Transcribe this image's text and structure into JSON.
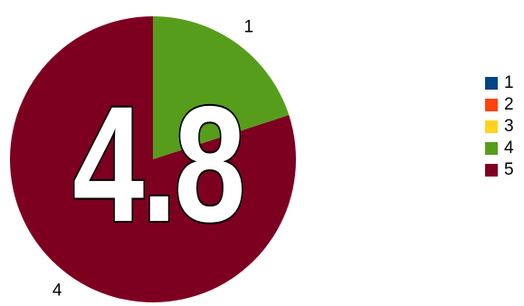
{
  "chart_data": {
    "type": "pie",
    "categories": [
      "1",
      "2",
      "3",
      "4",
      "5"
    ],
    "values": [
      0,
      0,
      0,
      1,
      4
    ],
    "slice_labels": [
      "",
      "",
      "",
      "1",
      "4"
    ],
    "colors": [
      "#004586",
      "#ff420e",
      "#ffd320",
      "#579d1c",
      "#7e0021"
    ],
    "legend_position": "right",
    "overlay_value": "4.8"
  }
}
